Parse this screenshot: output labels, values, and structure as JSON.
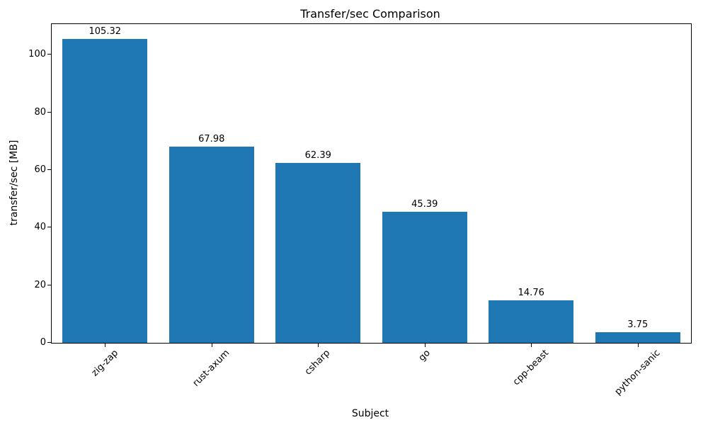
{
  "chart_data": {
    "type": "bar",
    "title": "Transfer/sec Comparison",
    "xlabel": "Subject",
    "ylabel": "transfer/sec [MB]",
    "categories": [
      "zig-zap",
      "rust-axum",
      "csharp",
      "go",
      "cpp-beast",
      "python-sanic"
    ],
    "values": [
      105.32,
      67.98,
      62.39,
      45.39,
      14.76,
      3.75
    ],
    "value_labels": [
      "105.32",
      "67.98",
      "62.39",
      "45.39",
      "14.76",
      "3.75"
    ],
    "ylim": [
      0,
      110.6
    ],
    "yticks": [
      0,
      20,
      40,
      60,
      80,
      100
    ],
    "bar_color": "#1f77b4",
    "grid": false,
    "legend_position": "none",
    "bar_width_fraction": 0.8
  }
}
